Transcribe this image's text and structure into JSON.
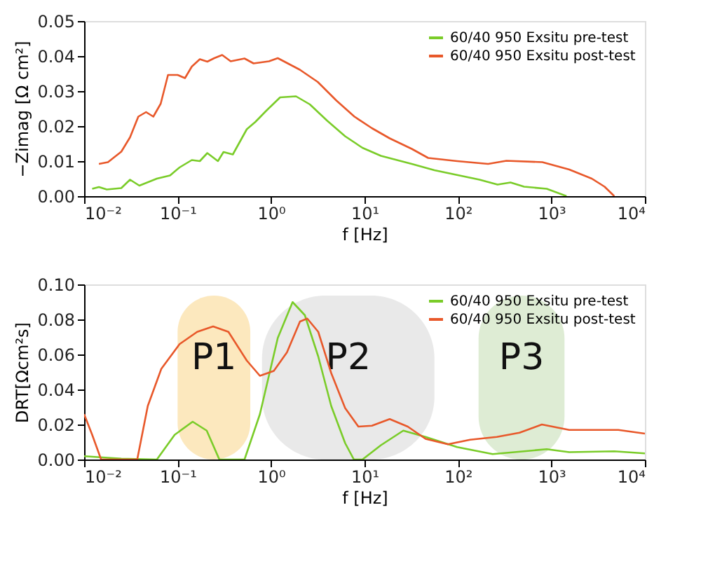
{
  "chart_data": [
    {
      "type": "line",
      "xlabel": "f [Hz]",
      "ylabel": "−Zimag [Ω cm²]",
      "log": "x",
      "legend": "top right",
      "grid": false,
      "xlim": [
        0.01,
        10000
      ],
      "xticks": [
        {
          "value": 0.01,
          "label": "10⁻²"
        },
        {
          "value": 0.1,
          "label": "10⁻¹"
        },
        {
          "value": 1,
          "label": "10⁰"
        },
        {
          "value": 10,
          "label": "10¹"
        },
        {
          "value": 100,
          "label": "10²"
        },
        {
          "value": 1000,
          "label": "10³"
        },
        {
          "value": 10000,
          "label": "10⁴"
        }
      ],
      "ylim": [
        0,
        0.05
      ],
      "yticks": [
        {
          "value": 0,
          "label": "0.00"
        },
        {
          "value": 0.01,
          "label": "0.01"
        },
        {
          "value": 0.02,
          "label": "0.02"
        },
        {
          "value": 0.03,
          "label": "0.03"
        },
        {
          "value": 0.04,
          "label": "0.04"
        },
        {
          "value": 0.05,
          "label": "0.05"
        }
      ],
      "series": [
        {
          "name": "60/40 950 Exsitu pre-test",
          "color": "#7acc29",
          "x": [
            0.0122,
            0.0144,
            0.0175,
            0.025,
            0.031,
            0.039,
            0.06,
            0.083,
            0.105,
            0.142,
            0.173,
            0.208,
            0.27,
            0.31,
            0.39,
            0.55,
            0.68,
            0.89,
            1.25,
            1.85,
            2.6,
            4.0,
            6.2,
            9.5,
            15,
            32,
            56,
            170,
            265,
            365,
            510,
            890,
            1450
          ],
          "values": [
            0.0021,
            0.0026,
            0.0019,
            0.0023,
            0.0047,
            0.003,
            0.005,
            0.0059,
            0.0082,
            0.0103,
            0.01,
            0.0123,
            0.01,
            0.0126,
            0.0119,
            0.0191,
            0.0212,
            0.0244,
            0.0282,
            0.0285,
            0.0262,
            0.0215,
            0.0171,
            0.0138,
            0.0115,
            0.0092,
            0.0074,
            0.0047,
            0.0033,
            0.0039,
            0.0027,
            0.0021,
            0
          ]
        },
        {
          "name": "60/40 950 Exsitu post-test",
          "color": "#e8582a",
          "x": [
            0.0144,
            0.018,
            0.025,
            0.031,
            0.038,
            0.046,
            0.055,
            0.066,
            0.079,
            0.1,
            0.12,
            0.142,
            0.173,
            0.208,
            0.247,
            0.3,
            0.37,
            0.52,
            0.65,
            0.95,
            1.18,
            2.03,
            3.16,
            5.0,
            7.8,
            12,
            18.6,
            32,
            48,
            98,
            210,
            330,
            800,
            1550,
            2700,
            3700,
            4700
          ],
          "values": [
            0.0092,
            0.0097,
            0.0127,
            0.0168,
            0.0227,
            0.024,
            0.0227,
            0.0264,
            0.0346,
            0.0346,
            0.0337,
            0.037,
            0.0391,
            0.0384,
            0.0394,
            0.0403,
            0.0385,
            0.0393,
            0.0379,
            0.0385,
            0.0394,
            0.0361,
            0.0326,
            0.0273,
            0.0227,
            0.0194,
            0.0165,
            0.0135,
            0.0109,
            0.01,
            0.0092,
            0.0101,
            0.0097,
            0.0076,
            0.005,
            0.0027,
            0
          ]
        }
      ]
    },
    {
      "type": "line",
      "xlabel": "f [Hz]",
      "ylabel": "DRT[Ωcm²s]",
      "log": "x",
      "legend": "top right",
      "grid": false,
      "xlim": [
        0.01,
        10000
      ],
      "xticks": [
        {
          "value": 0.01,
          "label": "10⁻²"
        },
        {
          "value": 0.1,
          "label": "10⁻¹"
        },
        {
          "value": 1,
          "label": "10⁰"
        },
        {
          "value": 10,
          "label": "10¹"
        },
        {
          "value": 100,
          "label": "10²"
        },
        {
          "value": 1000,
          "label": "10³"
        },
        {
          "value": 10000,
          "label": "10⁴"
        }
      ],
      "ylim": [
        0,
        0.1
      ],
      "yticks": [
        {
          "value": 0,
          "label": "0.00"
        },
        {
          "value": 0.02,
          "label": "0.02"
        },
        {
          "value": 0.04,
          "label": "0.04"
        },
        {
          "value": 0.06,
          "label": "0.06"
        },
        {
          "value": 0.08,
          "label": "0.08"
        },
        {
          "value": 0.1,
          "label": "0.10"
        }
      ],
      "bands": [
        {
          "axis": "x",
          "from": 0.1,
          "to": 0.6,
          "label": "P1",
          "color": "#fbe0a8"
        },
        {
          "axis": "x",
          "from": 0.8,
          "to": 56,
          "label": "P2",
          "color": "#e2e2e2"
        },
        {
          "axis": "x",
          "from": 166,
          "to": 1380,
          "label": "P3",
          "color": "#d3e6c6"
        }
      ],
      "series": [
        {
          "name": "60/40 950 Exsitu pre-test",
          "color": "#7acc29",
          "x": [
            0.01,
            0.025,
            0.06,
            0.093,
            0.145,
            0.205,
            0.28,
            0.52,
            0.76,
            1.18,
            1.7,
            2.3,
            3.2,
            4.4,
            6.2,
            7.7,
            9.5,
            15,
            26,
            45,
            98,
            235,
            510,
            890,
            1550,
            4700,
            10000
          ],
          "values": [
            0.0019,
            0.0005,
            0,
            0.0141,
            0.0216,
            0.0165,
            0,
            0,
            0.0259,
            0.0694,
            0.0899,
            0.0824,
            0.0588,
            0.0306,
            0.0094,
            0,
            0,
            0.0082,
            0.0165,
            0.0129,
            0.0071,
            0.0031,
            0.0047,
            0.0059,
            0.0042,
            0.0047,
            0.0035
          ]
        },
        {
          "name": "60/40 950 Exsitu post-test",
          "color": "#e8582a",
          "x": [
            0.01,
            0.0122,
            0.0152,
            0.037,
            0.048,
            0.067,
            0.105,
            0.162,
            0.24,
            0.35,
            0.55,
            0.76,
            1.07,
            1.48,
            2.04,
            2.44,
            3.2,
            4.4,
            6.2,
            8.6,
            12,
            18.6,
            29,
            45,
            78,
            135,
            260,
            455,
            790,
            1550,
            2700,
            5200,
            10000
          ],
          "values": [
            0.0259,
            0.0141,
            0,
            0,
            0.0306,
            0.0518,
            0.0659,
            0.0729,
            0.076,
            0.0729,
            0.0565,
            0.0478,
            0.0506,
            0.0612,
            0.0788,
            0.0805,
            0.0729,
            0.0494,
            0.0294,
            0.0188,
            0.0193,
            0.0231,
            0.0188,
            0.0118,
            0.0087,
            0.0113,
            0.0129,
            0.0153,
            0.02,
            0.0169,
            0.0169,
            0.0169,
            0.0148
          ]
        }
      ]
    }
  ]
}
